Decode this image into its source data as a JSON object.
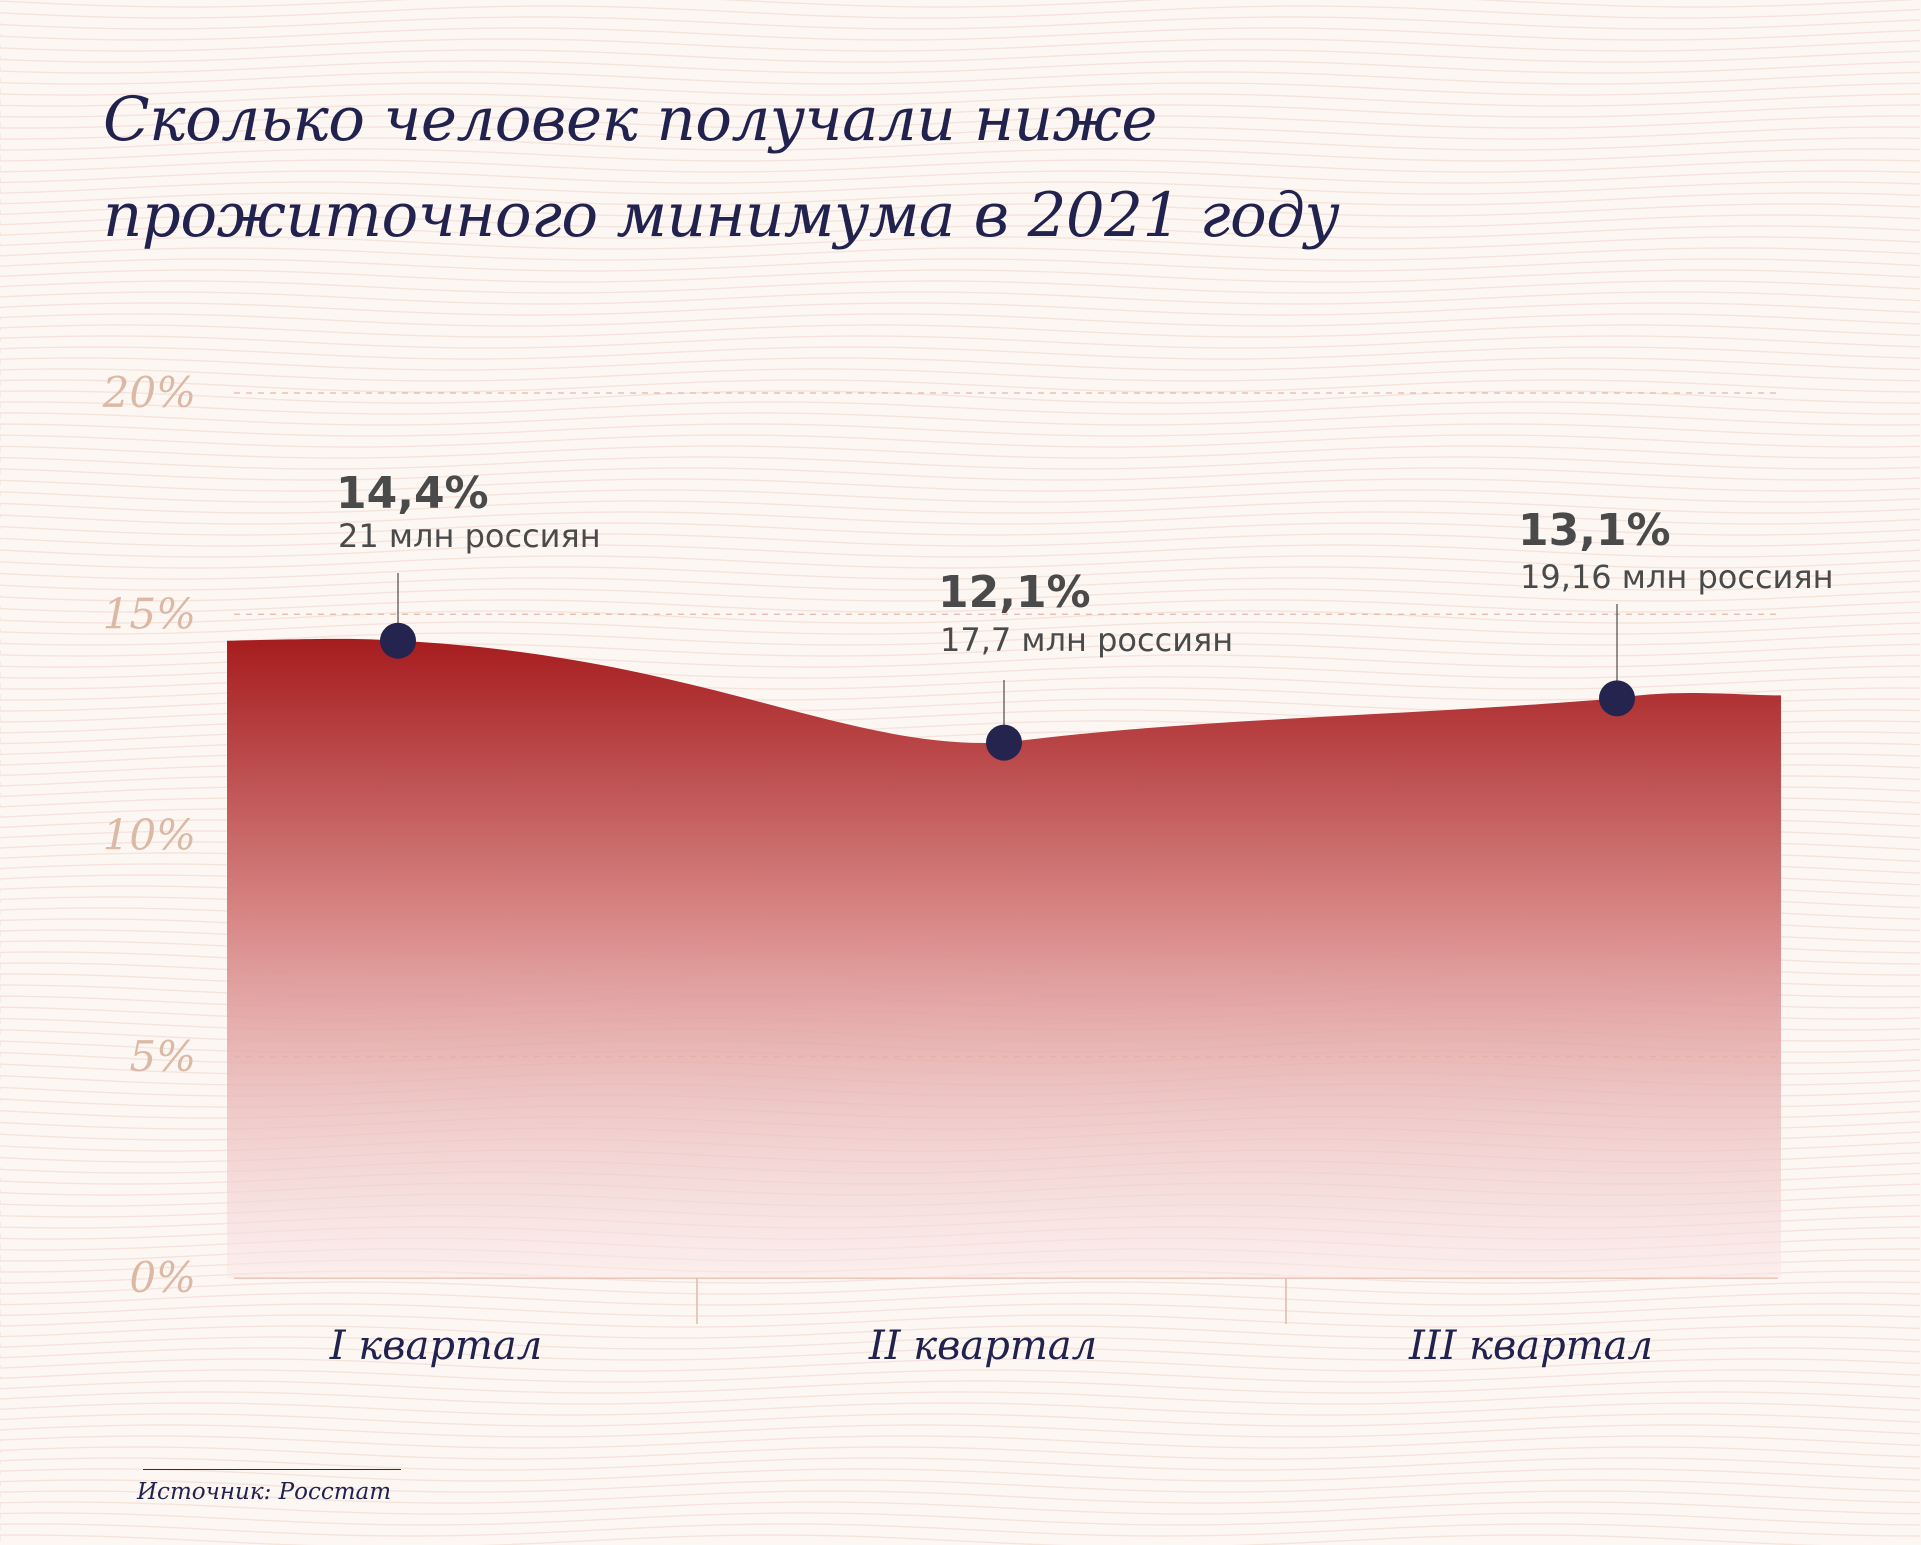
{
  "title": {
    "line1": "Сколько человек получали ниже",
    "line2": "прожиточного минимума в 2021 году"
  },
  "source": "Источник: Росстат",
  "colors": {
    "background": "#fdf7f4",
    "title": "#22224f",
    "area_top": "#a61c1e",
    "area_bottom": "#fae8e8",
    "marker": "#24244f",
    "tick_label": "#dcb9a5",
    "gridline": "#e3b7a8",
    "value_label": "#4a4a4a"
  },
  "chart_data": {
    "type": "area",
    "categories": [
      "I квартал",
      "II квартал",
      "III квартал"
    ],
    "values": [
      14.4,
      12.1,
      13.1
    ],
    "point_labels": [
      {
        "value": "14,4%",
        "note": "21 млн россиян"
      },
      {
        "value": "12,1%",
        "note": "17,7 млн россиян"
      },
      {
        "value": "13,1%",
        "note": "19,16 млн россиян"
      }
    ],
    "y_ticks": [
      "0%",
      "5%",
      "10%",
      "15%",
      "20%"
    ],
    "y_tick_values": [
      0,
      5,
      10,
      15,
      20
    ],
    "ylim": [
      0,
      20
    ],
    "grid": true,
    "legend": "none"
  }
}
